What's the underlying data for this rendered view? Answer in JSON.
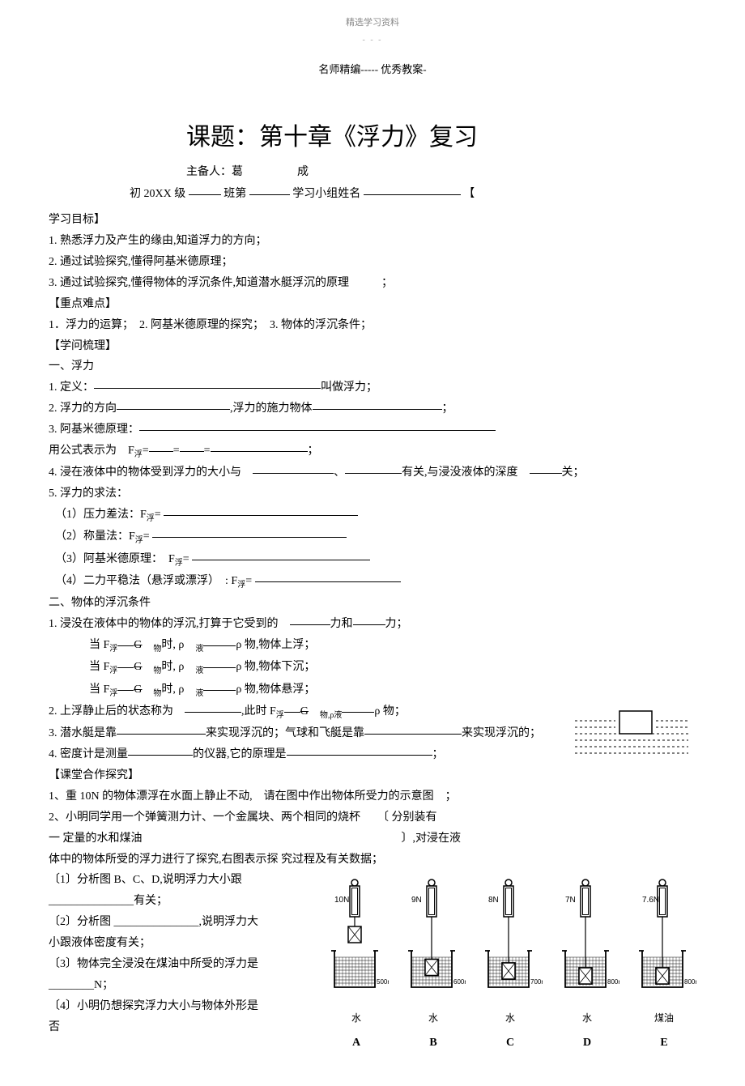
{
  "header": {
    "top": "精选学习资料",
    "dashes": "- - -",
    "mid": "名师精编----- 优秀教案-"
  },
  "title": "课题：第十章《浮力》复习",
  "subtitle_prefix": "主备人：葛",
  "subtitle_suffix": "成",
  "classline": {
    "pre": "初 20XX 级",
    "ban": "班第",
    "group": "学习小组姓名",
    "bracket": "【"
  },
  "sections": {
    "goals_head": "学习目标】",
    "goal1": "1. 熟悉浮力及产生的缘由,知道浮力的方向；",
    "goal2": "2. 通过试验探究,懂得阿基米德原理；",
    "goal3": "3. 通过试验探究,懂得物体的浮沉条件,知道潜水艇浮沉的原理",
    "semi": "；",
    "keypoints_head": "【重点难点】",
    "keypoint_line": "1．浮力的运算；　2. 阿基米德原理的探究；　3. 物体的浮沉条件；",
    "knowledge_head": "【学问梳理】",
    "sec1_head": "一、浮力",
    "sec1_1_pre": "1. 定义：",
    "sec1_1_post": "叫做浮力；",
    "sec1_2_pre": "2. 浮力的方向",
    "sec1_2_mid": ",浮力的施力物体",
    "sec1_3": "3. 阿基米德原理：",
    "sec1_formula_pre": "用公式表示为　F",
    "sec1_formula_eq": "=",
    "sec1_4_pre": "4. 浸在液体中的物体受到浮力的大小与",
    "sec1_4_mid": "、",
    "sec1_4_post1": "有关,与浸没液体的深度",
    "sec1_4_post2": "关；",
    "sec1_5": "5. 浮力的求法：",
    "sec1_5_1": "（1）压力差法：F",
    "sec1_5_2": "（2）称量法：F",
    "sec1_5_3": "（3）阿基米德原理：　F",
    "sec1_5_4": "（4）二力平稳法（悬浮或漂浮）　: F",
    "sec2_head": "二、物体的浮沉条件",
    "sec2_1_pre": "1. 浸没在液体中的物体的浮沉,打算于它受到的",
    "sec2_1_mid": "力和",
    "sec2_1_post": "力；",
    "sec2_when": "当 F",
    "sec2_g": "G",
    "sec2_wu": "物",
    "sec2_shi": "时, ρ",
    "sec2_ye": "液",
    "sec2_rho_wu": "ρ 物",
    "sec2_up": ",物体上浮；",
    "sec2_down": ",物体下沉；",
    "sec2_susp": ",物体悬浮；",
    "sec2_2_pre": "2. 上浮静止后的状态称为",
    "sec2_2_mid": ",此时 F",
    "sec2_2_post": "物,ρ",
    "sec2_3_pre": "3. 潜水艇是靠",
    "sec2_3_mid": "来实现浮沉的；气球和飞艇是靠",
    "sec2_3_post": "来实现浮沉的；",
    "sec2_4_pre": "4. 密度计是测量",
    "sec2_4_mid": "的仪器,它的原理是",
    "class_head": "【课堂合作探究】",
    "q1_pre": "1、重 10N 的物体漂浮在水面上静止不动,　请在图中作出物体所受力的示意图",
    "q2_pre": "2、小明同学用一个弹簧测力计、一个金属块、两个相同的烧杯",
    "q2_mid": "〔 分别装有",
    "q2_line2_pre": "一 定量的水和煤油",
    "q2_line2_post": "〕,对浸在液",
    "q2_line3": "体中的物体所受的浮力进行了探究,右图表示探 究过程及有关数据；",
    "q2_1_pre": "〔1〕分析图 B、C、D,说明浮力大小跟",
    "q2_1_post": "有关；",
    "q2_2_pre": "〔2〕分析图",
    "q2_2_post": ",说明浮力大",
    "q2_2b": "小跟液体密度有关；",
    "q2_3": "〔3〕物体完全浸没在煤油中所受的浮力是",
    "q2_3b": "________N；",
    "q2_4": "〔4〕小明仍想探究浮力大小与物体外形是",
    "q2_4b": "否"
  },
  "springs": {
    "forces": [
      "10N",
      "9N",
      "8N",
      "7N",
      "7.6N"
    ],
    "volumes": [
      "500ml",
      "600ml",
      "700ml",
      "800ml",
      "800ml"
    ],
    "liquids": [
      "水",
      "水",
      "水",
      "水",
      "煤油"
    ],
    "labels": [
      "A",
      "B",
      "C",
      "D",
      "E"
    ],
    "depths": [
      0,
      0.3,
      0.6,
      1.0,
      1.0
    ]
  },
  "colors": {
    "text": "#000000",
    "bg": "#ffffff",
    "faint": "#888888"
  }
}
